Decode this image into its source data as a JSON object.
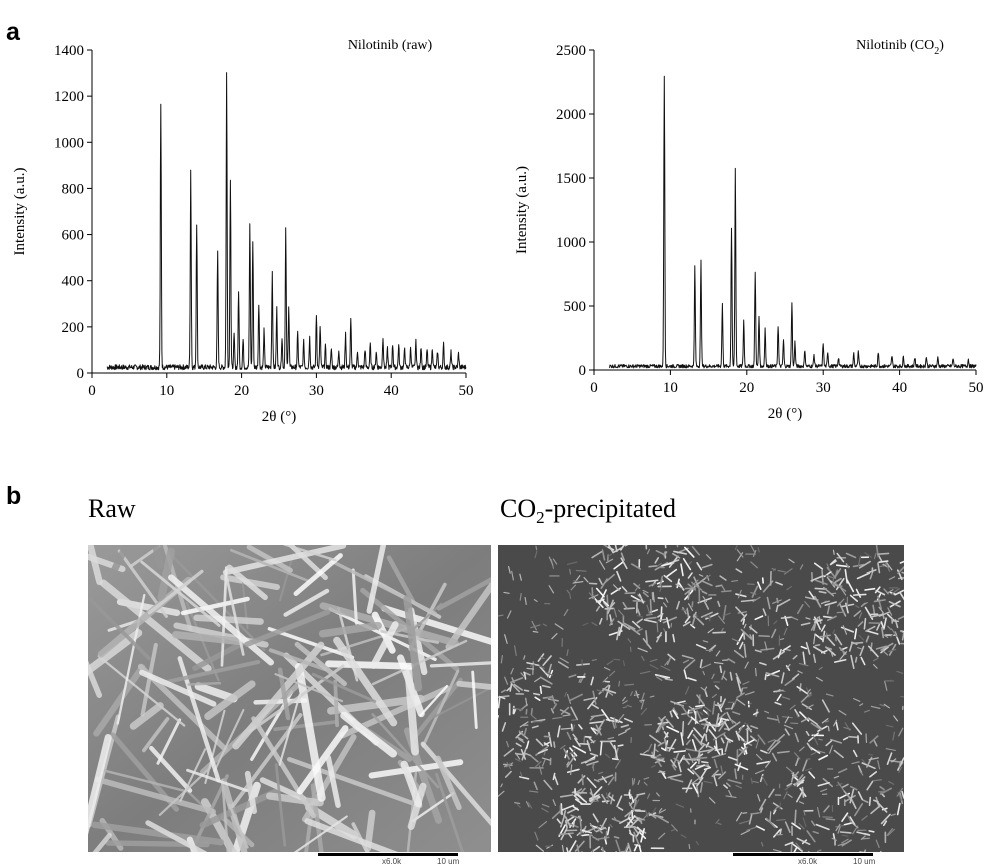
{
  "panels": {
    "a": "a",
    "b": "b"
  },
  "chart_data": [
    {
      "type": "line",
      "title": "Nilotinib (raw)",
      "xlabel": "2θ (°)",
      "ylabel": "Intensity (a.u.)",
      "xlim": [
        0,
        50
      ],
      "ylim": [
        0,
        1400
      ],
      "xticks": [
        "0",
        "10",
        "20",
        "30",
        "40",
        "50"
      ],
      "yticks": [
        "0",
        "200",
        "400",
        "600",
        "800",
        "1000",
        "1200",
        "1400"
      ],
      "baseline": 25,
      "x_start": 2,
      "peaks": [
        {
          "x": 9.2,
          "y": 1135
        },
        {
          "x": 13.2,
          "y": 855
        },
        {
          "x": 14.0,
          "y": 625
        },
        {
          "x": 16.8,
          "y": 505
        },
        {
          "x": 18.0,
          "y": 1275
        },
        {
          "x": 18.5,
          "y": 820
        },
        {
          "x": 19.0,
          "y": 140
        },
        {
          "x": 19.6,
          "y": 325
        },
        {
          "x": 20.2,
          "y": 120
        },
        {
          "x": 21.1,
          "y": 625
        },
        {
          "x": 21.5,
          "y": 545
        },
        {
          "x": 22.3,
          "y": 280
        },
        {
          "x": 23.0,
          "y": 160
        },
        {
          "x": 24.1,
          "y": 415
        },
        {
          "x": 24.7,
          "y": 255
        },
        {
          "x": 25.4,
          "y": 130
        },
        {
          "x": 25.9,
          "y": 600
        },
        {
          "x": 26.3,
          "y": 270
        },
        {
          "x": 27.5,
          "y": 150
        },
        {
          "x": 28.3,
          "y": 110
        },
        {
          "x": 29.1,
          "y": 130
        },
        {
          "x": 30.0,
          "y": 230
        },
        {
          "x": 30.5,
          "y": 180
        },
        {
          "x": 31.2,
          "y": 90
        },
        {
          "x": 32.0,
          "y": 80
        },
        {
          "x": 33.0,
          "y": 75
        },
        {
          "x": 33.9,
          "y": 145
        },
        {
          "x": 34.6,
          "y": 205
        },
        {
          "x": 35.5,
          "y": 70
        },
        {
          "x": 36.5,
          "y": 80
        },
        {
          "x": 37.2,
          "y": 100
        },
        {
          "x": 38.0,
          "y": 70
        },
        {
          "x": 38.9,
          "y": 135
        },
        {
          "x": 39.5,
          "y": 80
        },
        {
          "x": 40.2,
          "y": 100
        },
        {
          "x": 41.0,
          "y": 95
        },
        {
          "x": 41.8,
          "y": 85
        },
        {
          "x": 42.6,
          "y": 90
        },
        {
          "x": 43.3,
          "y": 110
        },
        {
          "x": 44.0,
          "y": 90
        },
        {
          "x": 44.8,
          "y": 75
        },
        {
          "x": 45.5,
          "y": 85
        },
        {
          "x": 46.2,
          "y": 70
        },
        {
          "x": 47.0,
          "y": 100
        },
        {
          "x": 48.0,
          "y": 65
        },
        {
          "x": 49.0,
          "y": 60
        }
      ]
    },
    {
      "type": "line",
      "title": "Nilotinib (CO",
      "title_sub": "2",
      "title_end": ")",
      "xlabel": "2θ (°)",
      "ylabel": "Intensity (a.u.)",
      "xlim": [
        0,
        50
      ],
      "ylim": [
        0,
        2500
      ],
      "xticks": [
        "0",
        "10",
        "20",
        "30",
        "40",
        "50"
      ],
      "yticks": [
        "0",
        "500",
        "1000",
        "1500",
        "2000",
        "2500"
      ],
      "baseline": 30,
      "x_start": 2,
      "peaks": [
        {
          "x": 9.2,
          "y": 2255
        },
        {
          "x": 13.2,
          "y": 780
        },
        {
          "x": 14.0,
          "y": 820
        },
        {
          "x": 16.8,
          "y": 490
        },
        {
          "x": 18.0,
          "y": 1080
        },
        {
          "x": 18.5,
          "y": 1545
        },
        {
          "x": 19.6,
          "y": 360
        },
        {
          "x": 21.1,
          "y": 730
        },
        {
          "x": 21.6,
          "y": 390
        },
        {
          "x": 22.4,
          "y": 300
        },
        {
          "x": 24.1,
          "y": 320
        },
        {
          "x": 24.8,
          "y": 200
        },
        {
          "x": 25.9,
          "y": 500
        },
        {
          "x": 26.3,
          "y": 190
        },
        {
          "x": 27.6,
          "y": 130
        },
        {
          "x": 28.8,
          "y": 90
        },
        {
          "x": 30.0,
          "y": 180
        },
        {
          "x": 30.6,
          "y": 110
        },
        {
          "x": 32.0,
          "y": 70
        },
        {
          "x": 34.0,
          "y": 100
        },
        {
          "x": 34.6,
          "y": 110
        },
        {
          "x": 37.2,
          "y": 110
        },
        {
          "x": 39.0,
          "y": 80
        },
        {
          "x": 40.5,
          "y": 75
        },
        {
          "x": 42.0,
          "y": 70
        },
        {
          "x": 43.5,
          "y": 75
        },
        {
          "x": 45.0,
          "y": 65
        },
        {
          "x": 47.0,
          "y": 60
        },
        {
          "x": 49.0,
          "y": 55
        }
      ]
    }
  ],
  "sem": {
    "left_title": "Raw",
    "right_title_pre": "CO",
    "right_title_sub": "2",
    "right_title_post": "-precipitated",
    "magnification": "x6.0k",
    "scale": "10 um"
  }
}
